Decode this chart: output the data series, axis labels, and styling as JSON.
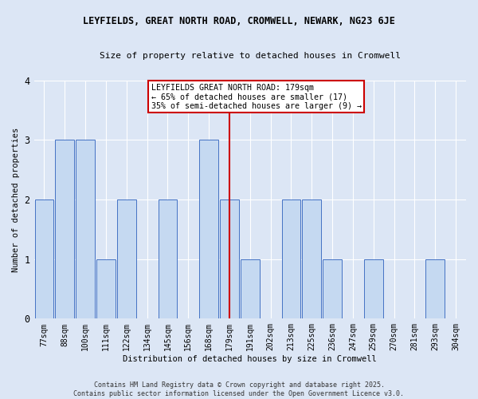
{
  "title": "LEYFIELDS, GREAT NORTH ROAD, CROMWELL, NEWARK, NG23 6JE",
  "subtitle": "Size of property relative to detached houses in Cromwell",
  "xlabel": "Distribution of detached houses by size in Cromwell",
  "ylabel": "Number of detached properties",
  "categories": [
    "77sqm",
    "88sqm",
    "100sqm",
    "111sqm",
    "122sqm",
    "134sqm",
    "145sqm",
    "156sqm",
    "168sqm",
    "179sqm",
    "191sqm",
    "202sqm",
    "213sqm",
    "225sqm",
    "236sqm",
    "247sqm",
    "259sqm",
    "270sqm",
    "281sqm",
    "293sqm",
    "304sqm"
  ],
  "values": [
    2,
    3,
    3,
    1,
    2,
    0,
    2,
    0,
    3,
    2,
    1,
    0,
    2,
    2,
    1,
    0,
    1,
    0,
    0,
    1,
    0
  ],
  "highlight_index": 9,
  "highlight_color": "#cc0000",
  "bar_color": "#c5d9f1",
  "bar_edge_color": "#4472c4",
  "ylim": [
    0,
    4
  ],
  "yticks": [
    0,
    1,
    2,
    3,
    4
  ],
  "annotation_text": "LEYFIELDS GREAT NORTH ROAD: 179sqm\n← 65% of detached houses are smaller (17)\n35% of semi-detached houses are larger (9) →",
  "annotation_box_color": "#ffffff",
  "annotation_box_edge": "#cc0000",
  "bg_color": "#dce6f5",
  "footer": "Contains HM Land Registry data © Crown copyright and database right 2025.\nContains public sector information licensed under the Open Government Licence v3.0."
}
